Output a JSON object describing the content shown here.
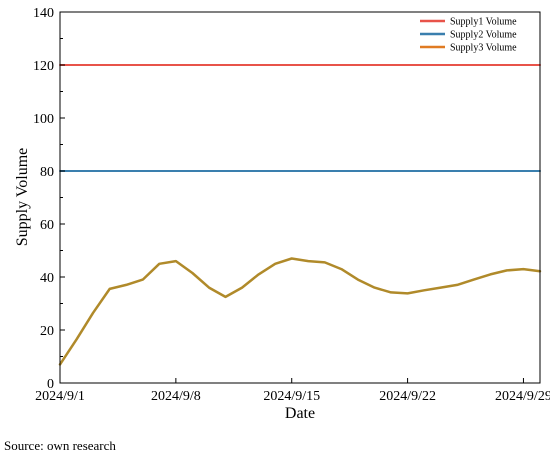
{
  "chart_data": {
    "type": "line",
    "xlabel": "Date",
    "ylabel": "Supply Volume",
    "ylim": [
      0,
      140
    ],
    "yticks": [
      0,
      20,
      40,
      60,
      80,
      100,
      120,
      140
    ],
    "xlim": [
      "2024-09-01",
      "2024-09-30"
    ],
    "xticks": [
      "2024/9/1",
      "2024/9/8",
      "2024/9/15",
      "2024/9/22",
      "2024/9/29"
    ],
    "grid": false,
    "legend_position": "top-right",
    "x": [
      "2024-09-01",
      "2024-09-02",
      "2024-09-03",
      "2024-09-04",
      "2024-09-05",
      "2024-09-06",
      "2024-09-07",
      "2024-09-08",
      "2024-09-09",
      "2024-09-10",
      "2024-09-11",
      "2024-09-12",
      "2024-09-13",
      "2024-09-14",
      "2024-09-15",
      "2024-09-16",
      "2024-09-17",
      "2024-09-18",
      "2024-09-19",
      "2024-09-20",
      "2024-09-21",
      "2024-09-22",
      "2024-09-23",
      "2024-09-24",
      "2024-09-25",
      "2024-09-26",
      "2024-09-27",
      "2024-09-28",
      "2024-09-29",
      "2024-09-30"
    ],
    "series": [
      {
        "name": "Supply1 Volume",
        "color": "#e8534a",
        "values": [
          120,
          120,
          120,
          120,
          120,
          120,
          120,
          120,
          120,
          120,
          120,
          120,
          120,
          120,
          120,
          120,
          120,
          120,
          120,
          120,
          120,
          120,
          120,
          120,
          120,
          120,
          120,
          120,
          120,
          120
        ]
      },
      {
        "name": "Supply2 Volume",
        "color": "#3a7fae",
        "values": [
          80,
          80,
          80,
          80,
          80,
          80,
          80,
          80,
          80,
          80,
          80,
          80,
          80,
          80,
          80,
          80,
          80,
          80,
          80,
          80,
          80,
          80,
          80,
          80,
          80,
          80,
          80,
          80,
          80,
          80
        ]
      },
      {
        "name": "Supply3 Volume",
        "color": "#e07b22",
        "values": [
          7,
          16.5,
          26.5,
          35.5,
          37,
          39,
          45,
          46,
          41.5,
          36,
          32.5,
          36,
          41,
          45,
          47,
          46,
          45.5,
          43,
          39,
          36,
          34.2,
          33.8,
          35,
          36,
          37,
          39,
          41,
          42.5,
          43,
          42.2
        ]
      }
    ],
    "visible_line_color": "#b08a2a"
  },
  "footer": {
    "source": "Source: own research"
  }
}
